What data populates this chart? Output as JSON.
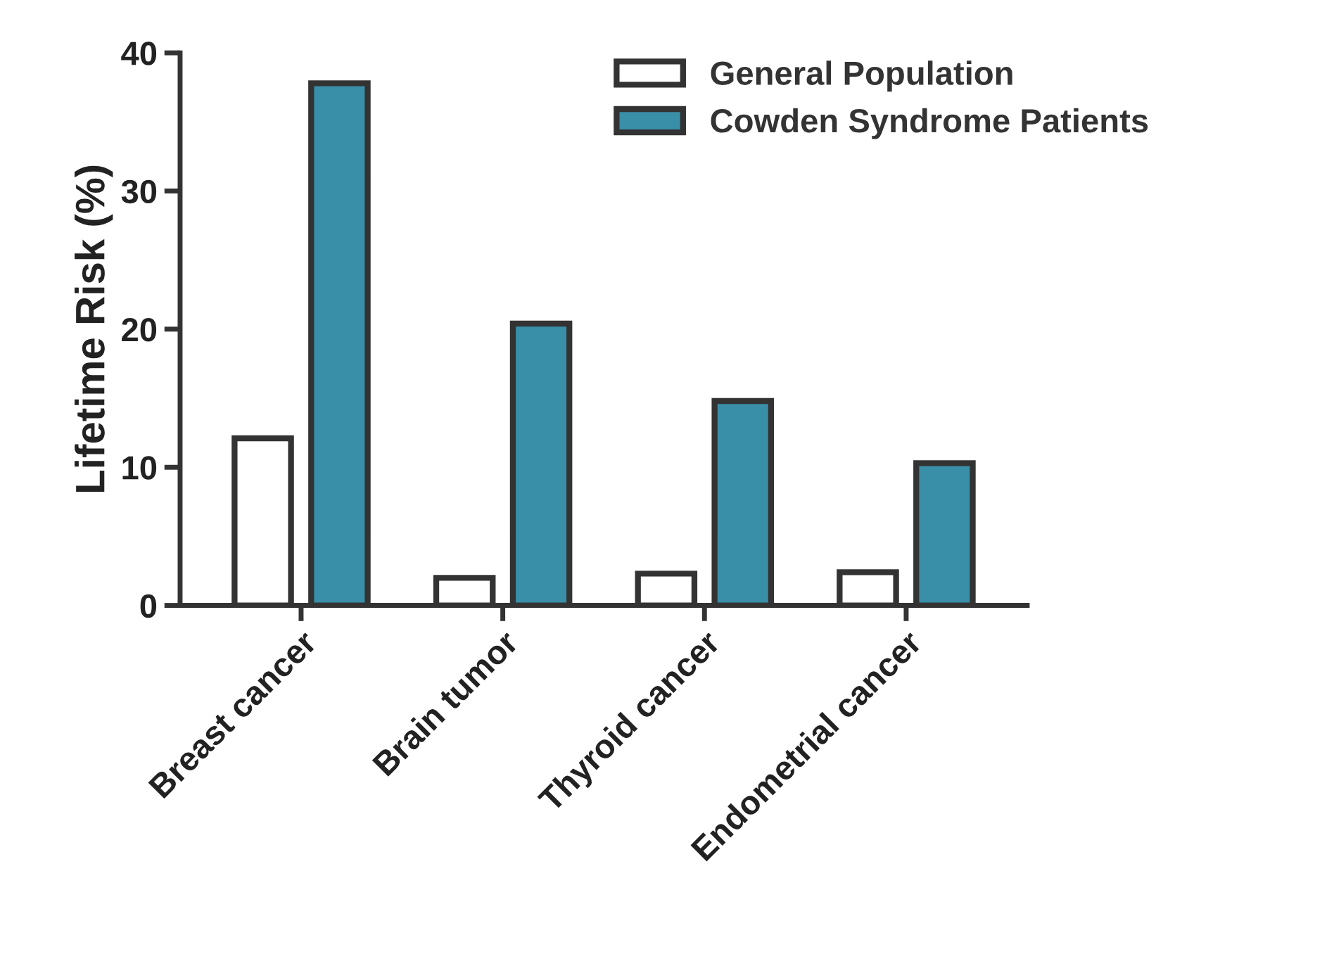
{
  "chart_data": {
    "type": "bar",
    "ylabel": "Lifetime Risk (%)",
    "categories": [
      "Breast cancer",
      "Brain tumor",
      "Thyroid cancer",
      "Endometrial cancer"
    ],
    "series": [
      {
        "name": "General Population",
        "color": "#ffffff",
        "values": [
          12.1,
          2.0,
          2.3,
          2.4
        ]
      },
      {
        "name": "Cowden Syndrome Patients",
        "color": "#3a8fa8",
        "values": [
          37.8,
          20.4,
          14.8,
          10.3
        ]
      }
    ],
    "ylim": [
      0,
      40
    ],
    "yticks": [
      0,
      10,
      20,
      30,
      40
    ],
    "grid": false,
    "legend": "top right"
  }
}
